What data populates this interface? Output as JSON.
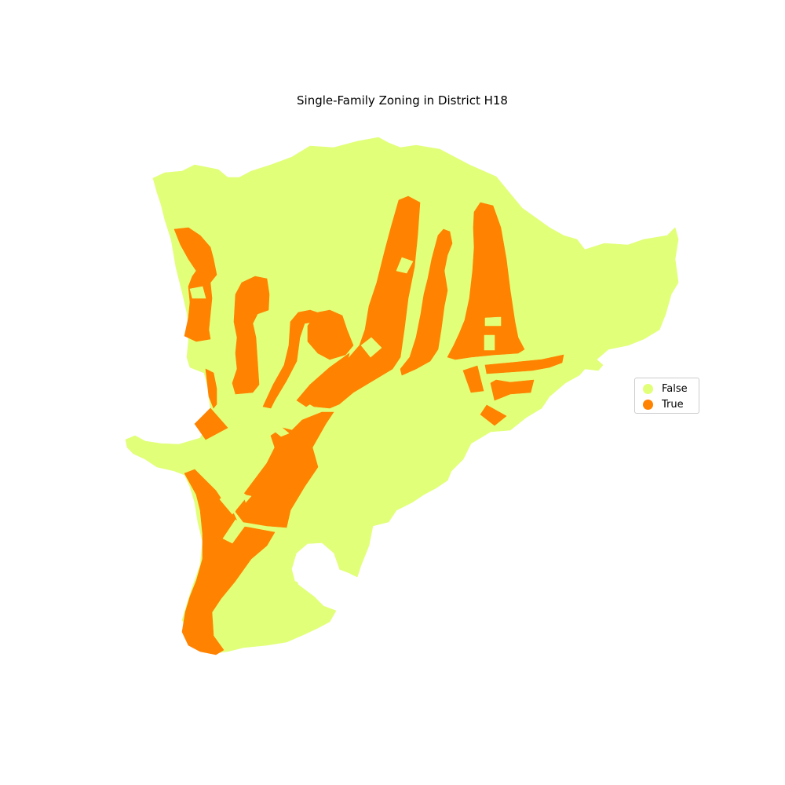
{
  "title": "Single-Family Zoning in District H18",
  "legend": {
    "items": [
      {
        "label": "False",
        "color": "#e1ff78"
      },
      {
        "label": "True",
        "color": "#ff8200"
      }
    ]
  },
  "colors": {
    "false_fill": "#e1ff78",
    "true_fill": "#ff8200",
    "background": "#ffffff"
  }
}
